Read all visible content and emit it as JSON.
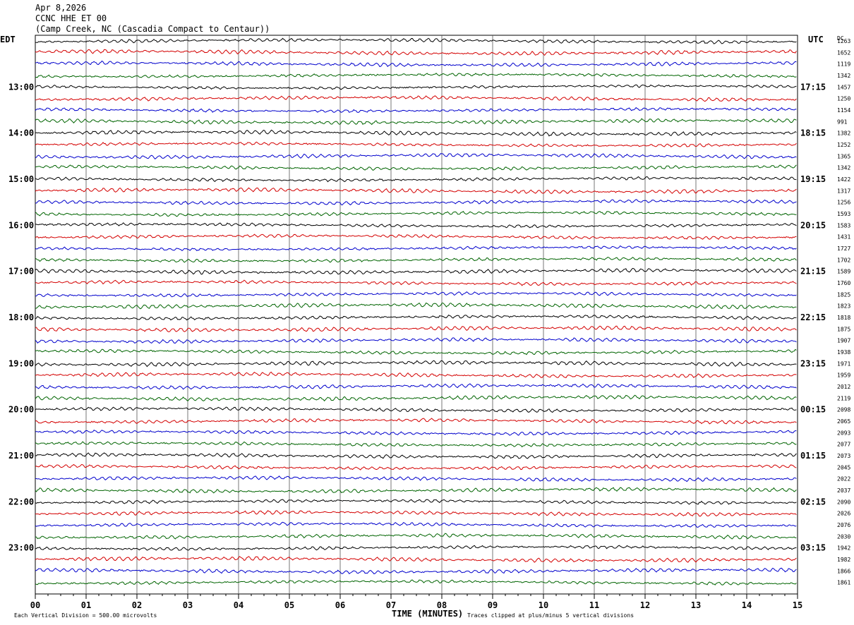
{
  "header": {
    "date": "Apr 8,2026",
    "station": "CCNC HHE ET 00",
    "location": "(Camp Creek, NC (Cascadia Compact to Centaur))"
  },
  "left_axis_title": "EDT",
  "right_axis_title": "UTC",
  "dc_title": "DC",
  "footer": {
    "vertical_division": "Each Vertical Division =  500.00 microvolts",
    "x_title": "TIME (MINUTES)",
    "clip_note": "Traces clipped at plus/minus 5 vertical divisions"
  },
  "chart_data": {
    "type": "line",
    "title": "CCNC HHE ET 00",
    "xlabel": "TIME (MINUTES)",
    "xlim": [
      0,
      15
    ],
    "x_ticks": [
      "00",
      "01",
      "02",
      "03",
      "04",
      "05",
      "06",
      "07",
      "08",
      "09",
      "10",
      "11",
      "12",
      "13",
      "14",
      "15"
    ],
    "grid": true,
    "series_colors": [
      "#000000",
      "#d40000",
      "#0000cc",
      "#006400"
    ],
    "trace_count": 48,
    "left_ticks": [
      "13:00",
      "14:00",
      "15:00",
      "16:00",
      "17:00",
      "18:00",
      "19:00",
      "20:00",
      "21:00",
      "22:00",
      "23:00"
    ],
    "right_ticks": [
      "17:15",
      "18:15",
      "19:15",
      "20:15",
      "21:15",
      "22:15",
      "23:15",
      "00:15",
      "01:15",
      "02:15",
      "03:15"
    ],
    "dc_values": [
      "1263",
      "1652",
      "1119",
      "1342",
      "1457",
      "1250",
      "1154",
      "991",
      "1382",
      "1252",
      "1365",
      "1342",
      "1422",
      "1317",
      "1256",
      "1593",
      "1583",
      "1431",
      "1727",
      "1702",
      "1589",
      "1760",
      "1825",
      "1823",
      "1818",
      "1875",
      "1907",
      "1938",
      "1971",
      "1959",
      "2012",
      "2119",
      "2098",
      "2065",
      "2093",
      "2077",
      "2073",
      "2045",
      "2022",
      "2037",
      "2090",
      "2026",
      "2076",
      "2030",
      "1942",
      "1982",
      "1866",
      "1861"
    ]
  }
}
